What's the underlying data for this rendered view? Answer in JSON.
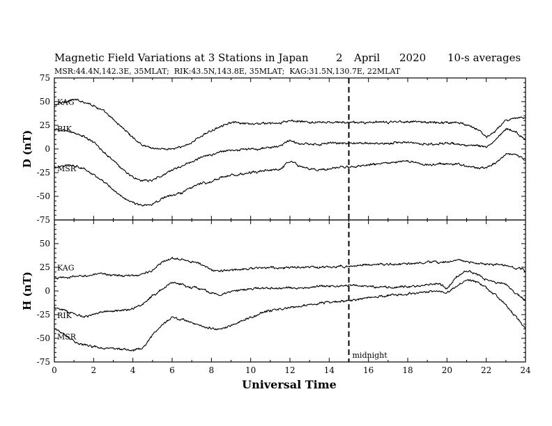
{
  "title": {
    "main": "Magnetic Field Variations at 3 Stations in Japan",
    "day": "2",
    "month": "April",
    "year": "2020",
    "averaging": "10-s averages"
  },
  "subtitle": "MSR:44.4N,142.3E, 35MLAT;  RIK:43.5N,143.8E, 35MLAT;  KAG:31.5N,130.7E, 22MLAT",
  "chart_data": [
    {
      "type": "line",
      "panel": "top",
      "ylabel": "D (nT)",
      "ylim": [
        -75,
        75
      ],
      "yticks": [
        75,
        50,
        25,
        0,
        -25,
        -50,
        -75
      ],
      "xlim": [
        0,
        24
      ],
      "series": [
        {
          "name": "KAG",
          "x": [
            0,
            0.5,
            1,
            1.5,
            2,
            2.5,
            3,
            3.5,
            4,
            4.5,
            5,
            5.5,
            6,
            6.5,
            7,
            7.5,
            8,
            8.5,
            9,
            9.5,
            10,
            10.5,
            11,
            11.5,
            12,
            12.5,
            13,
            13.5,
            14,
            14.5,
            15,
            15.5,
            16,
            16.5,
            17,
            17.5,
            18,
            18.5,
            19,
            19.5,
            20,
            20.5,
            21,
            21.5,
            22,
            22.5,
            23,
            23.5,
            24
          ],
          "values": [
            46,
            50,
            52,
            50,
            46,
            40,
            31,
            22,
            12,
            4,
            1,
            0,
            0,
            2,
            7,
            14,
            19,
            25,
            28,
            27,
            26,
            27,
            27,
            27,
            30,
            29,
            28,
            28,
            28,
            28,
            28,
            28,
            28,
            28,
            28,
            29,
            29,
            29,
            28,
            28,
            28,
            28,
            26,
            22,
            12,
            20,
            30,
            32,
            34
          ]
        },
        {
          "name": "RIK",
          "x": [
            0,
            0.5,
            1,
            1.5,
            2,
            2.5,
            3,
            3.5,
            4,
            4.5,
            5,
            5.5,
            6,
            6.5,
            7,
            7.5,
            8,
            8.5,
            9,
            9.5,
            10,
            10.5,
            11,
            11.5,
            12,
            12.5,
            13,
            13.5,
            14,
            14.5,
            15,
            15.5,
            16,
            16.5,
            17,
            17.5,
            18,
            18.5,
            19,
            19.5,
            20,
            20.5,
            21,
            21.5,
            22,
            22.5,
            23,
            23.5,
            24
          ],
          "values": [
            20,
            20,
            17,
            13,
            7,
            -3,
            -12,
            -22,
            -30,
            -34,
            -33,
            -28,
            -22,
            -18,
            -13,
            -9,
            -6,
            -3,
            -1,
            -1,
            0,
            0,
            2,
            3,
            9,
            5,
            5,
            5,
            6,
            6,
            6,
            6,
            6,
            6,
            6,
            7,
            7,
            6,
            5,
            5,
            6,
            5,
            4,
            4,
            2,
            10,
            22,
            18,
            10
          ]
        },
        {
          "name": "MSR",
          "x": [
            0,
            0.5,
            1,
            1.5,
            2,
            2.5,
            3,
            3.5,
            4,
            4.5,
            5,
            5.5,
            6,
            6.5,
            7,
            7.5,
            8,
            8.5,
            9,
            9.5,
            10,
            10.5,
            11,
            11.5,
            12,
            12.5,
            13,
            13.5,
            14,
            14.5,
            15,
            15.5,
            16,
            16.5,
            17,
            17.5,
            18,
            18.5,
            19,
            19.5,
            20,
            20.5,
            21,
            21.5,
            22,
            22.5,
            23,
            23.5,
            24
          ],
          "values": [
            -20,
            -17,
            -17,
            -21,
            -27,
            -35,
            -43,
            -51,
            -57,
            -60,
            -58,
            -52,
            -49,
            -46,
            -40,
            -36,
            -35,
            -30,
            -28,
            -27,
            -25,
            -24,
            -22,
            -22,
            -13,
            -18,
            -21,
            -22,
            -21,
            -19,
            -19,
            -18,
            -17,
            -16,
            -15,
            -14,
            -13,
            -15,
            -17,
            -16,
            -16,
            -16,
            -18,
            -20,
            -20,
            -14,
            -5,
            -6,
            -12
          ]
        }
      ]
    },
    {
      "type": "line",
      "panel": "bottom",
      "ylabel": "H (nT)",
      "ylim": [
        -75,
        75
      ],
      "yticks": [
        50,
        25,
        0,
        -25,
        -50,
        -75
      ],
      "xlim": [
        0,
        24
      ],
      "xticks": [
        0,
        2,
        4,
        6,
        8,
        10,
        12,
        14,
        16,
        18,
        20,
        22,
        24
      ],
      "xlabel": "Universal Time",
      "series": [
        {
          "name": "KAG",
          "x": [
            0,
            0.5,
            1,
            1.5,
            2,
            2.5,
            3,
            3.5,
            4,
            4.5,
            5,
            5.5,
            6,
            6.5,
            7,
            7.5,
            8,
            8.5,
            9,
            9.5,
            10,
            10.5,
            11,
            11.5,
            12,
            12.5,
            13,
            13.5,
            14,
            14.5,
            15,
            15.5,
            16,
            16.5,
            17,
            17.5,
            18,
            18.5,
            19,
            19.5,
            20,
            20.5,
            21,
            21.5,
            22,
            22.5,
            23,
            23.5,
            24
          ],
          "values": [
            13,
            14,
            15,
            16,
            17,
            18,
            17,
            16,
            16,
            18,
            22,
            30,
            35,
            34,
            31,
            28,
            22,
            21,
            22,
            23,
            24,
            24,
            25,
            24,
            25,
            25,
            25,
            25,
            25,
            26,
            26,
            27,
            28,
            28,
            28,
            28,
            29,
            29,
            30,
            30,
            31,
            33,
            31,
            29,
            28,
            28,
            27,
            24,
            22
          ]
        },
        {
          "name": "RIK",
          "x": [
            0,
            0.5,
            1,
            1.5,
            2,
            2.5,
            3,
            3.5,
            4,
            4.5,
            5,
            5.5,
            6,
            6.5,
            7,
            7.5,
            8,
            8.5,
            9,
            9.5,
            10,
            10.5,
            11,
            11.5,
            12,
            12.5,
            13,
            13.5,
            14,
            14.5,
            15,
            15.5,
            16,
            16.5,
            17,
            17.5,
            18,
            18.5,
            19,
            19.5,
            20,
            20.5,
            21,
            21.5,
            22,
            22.5,
            23,
            23.5,
            24
          ],
          "values": [
            -17,
            -20,
            -25,
            -27,
            -25,
            -22,
            -21,
            -20,
            -19,
            -14,
            -5,
            2,
            9,
            7,
            4,
            2,
            -2,
            -4,
            -1,
            1,
            2,
            3,
            3,
            3,
            3,
            3,
            4,
            5,
            5,
            5,
            6,
            6,
            5,
            4,
            4,
            4,
            5,
            5,
            6,
            8,
            3,
            15,
            22,
            18,
            12,
            9,
            8,
            -2,
            -10
          ]
        },
        {
          "name": "MSR",
          "x": [
            0,
            0.5,
            1,
            1.5,
            2,
            2.5,
            3,
            3.5,
            4,
            4.5,
            5,
            5.5,
            6,
            6.5,
            7,
            7.5,
            8,
            8.5,
            9,
            9.5,
            10,
            10.5,
            11,
            11.5,
            12,
            12.5,
            13,
            13.5,
            14,
            14.5,
            15,
            15.5,
            16,
            16.5,
            17,
            17.5,
            18,
            18.5,
            19,
            19.5,
            20,
            20.5,
            21,
            21.5,
            22,
            22.5,
            23,
            23.5,
            24
          ],
          "values": [
            -40,
            -45,
            -53,
            -57,
            -59,
            -60,
            -61,
            -62,
            -63,
            -60,
            -47,
            -36,
            -28,
            -30,
            -33,
            -37,
            -40,
            -40,
            -36,
            -32,
            -28,
            -24,
            -21,
            -19,
            -18,
            -17,
            -15,
            -13,
            -12,
            -11,
            -10,
            -9,
            -7,
            -6,
            -5,
            -4,
            -3,
            -2,
            -1,
            0,
            -2,
            5,
            12,
            10,
            3,
            -5,
            -15,
            -27,
            -40
          ]
        }
      ]
    }
  ],
  "marker": {
    "time": 15,
    "label": "midnight"
  }
}
